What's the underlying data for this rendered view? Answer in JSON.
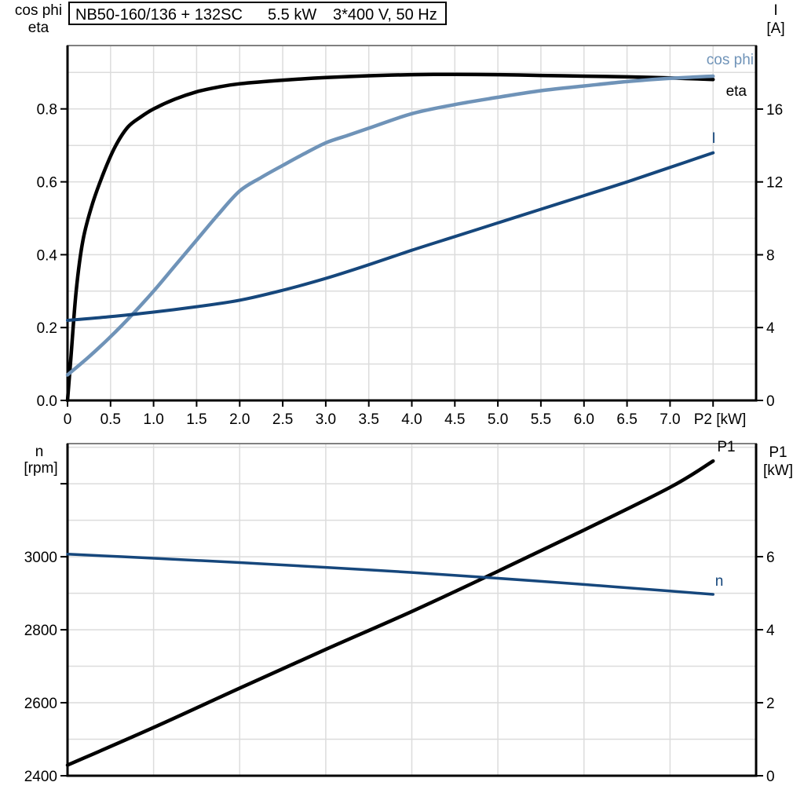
{
  "chart_data": [
    {
      "id": "motor-performance-top",
      "type": "line",
      "title": "NB50-160/136 + 132SC   5.5 kW   3*400 V, 50 Hz",
      "title_parts": [
        "NB50-160/136 + 132SC",
        "5.5 kW",
        "3*400 V, 50 Hz"
      ],
      "xlabel": "P2 [kW]",
      "grid": true,
      "grid_color": "#dcdcdc",
      "frame_color": "#000000",
      "top_border_color": "#808080",
      "x_axis": {
        "range": [
          0,
          8.0
        ],
        "tick_values": [
          0,
          0.5,
          1.0,
          1.5,
          2.0,
          2.5,
          3.0,
          3.5,
          4.0,
          4.5,
          5.0,
          5.5,
          6.0,
          6.5,
          7.0,
          7.5
        ],
        "tick_labels": [
          "0",
          "0.5",
          "1.0",
          "1.5",
          "2.0",
          "2.5",
          "3.0",
          "3.5",
          "4.0",
          "4.5",
          "5.0",
          "5.5",
          "6.0",
          "6.5",
          "7.0",
          ""
        ],
        "gridlines": [
          0.5,
          1.0,
          1.5,
          2.0,
          2.5,
          3.0,
          3.5,
          4.0,
          4.5,
          5.0,
          5.5,
          6.0,
          6.5,
          7.0,
          7.5
        ]
      },
      "y_left": {
        "label": [
          "cos phi",
          "eta"
        ],
        "range": [
          0,
          0.974
        ],
        "tick_values": [
          0.0,
          0.2,
          0.4,
          0.6,
          0.8
        ],
        "tick_labels": [
          "0.0",
          "0.2",
          "0.4",
          "0.6",
          "0.8"
        ],
        "gridlines": [
          0.1,
          0.2,
          0.3,
          0.4,
          0.5,
          0.6,
          0.7,
          0.8,
          0.9
        ]
      },
      "y_right": {
        "label": [
          "I",
          "[A]"
        ],
        "range": [
          0,
          19.49
        ],
        "tick_values": [
          0,
          4,
          8,
          12,
          16
        ],
        "tick_labels": [
          "0",
          "4",
          "8",
          "12",
          "16"
        ],
        "gridlines": []
      },
      "series": [
        {
          "name": "eta",
          "label": "eta",
          "axis": "left",
          "color": "#000000",
          "x": [
            0,
            0.04,
            0.1,
            0.18,
            0.29,
            0.42,
            0.55,
            0.7,
            0.85,
            1.0,
            1.25,
            1.5,
            1.75,
            2.0,
            2.5,
            3.0,
            3.5,
            4.0,
            4.5,
            5.0,
            5.5,
            6.0,
            6.5,
            7.0,
            7.5
          ],
          "y": [
            0.0,
            0.12,
            0.3,
            0.44,
            0.54,
            0.625,
            0.695,
            0.75,
            0.778,
            0.8,
            0.827,
            0.847,
            0.86,
            0.869,
            0.879,
            0.886,
            0.891,
            0.894,
            0.895,
            0.894,
            0.892,
            0.89,
            0.888,
            0.885,
            0.881
          ]
        },
        {
          "name": "cos-phi",
          "label": "cos phi",
          "axis": "left",
          "color": "#6f93b8",
          "x": [
            0,
            0.25,
            0.5,
            0.75,
            1.0,
            1.25,
            1.5,
            1.75,
            2.0,
            2.25,
            2.5,
            2.75,
            3.0,
            3.25,
            3.5,
            4.0,
            4.5,
            5.0,
            5.5,
            6.0,
            6.5,
            7.0,
            7.5
          ],
          "y": [
            0.07,
            0.12,
            0.175,
            0.235,
            0.3,
            0.37,
            0.44,
            0.51,
            0.575,
            0.612,
            0.645,
            0.677,
            0.707,
            0.727,
            0.747,
            0.787,
            0.812,
            0.832,
            0.85,
            0.863,
            0.875,
            0.884,
            0.89
          ]
        },
        {
          "name": "current",
          "label": "I",
          "axis": "right",
          "color": "#16477c",
          "x": [
            0,
            0.5,
            1.0,
            1.5,
            2.0,
            2.5,
            3.0,
            3.5,
            4.0,
            4.5,
            5.0,
            5.5,
            6.0,
            6.5,
            7.0,
            7.5
          ],
          "y": [
            4.4,
            4.6,
            4.85,
            5.15,
            5.5,
            6.05,
            6.7,
            7.45,
            8.25,
            9.0,
            9.75,
            10.5,
            11.25,
            12.0,
            12.8,
            13.6
          ]
        }
      ]
    },
    {
      "id": "motor-performance-bottom",
      "type": "line",
      "title": "",
      "xlabel": "",
      "grid": true,
      "grid_color": "#dcdcdc",
      "frame_color": "#000000",
      "top_border_color": "#808080",
      "x_axis": {
        "range": [
          0,
          8.0
        ],
        "tick_values": [],
        "tick_labels": [],
        "gridlines": [
          1,
          2,
          3,
          4,
          5,
          6,
          7
        ]
      },
      "y_left": {
        "label": [
          "n",
          "[rpm]"
        ],
        "range": [
          2400,
          3310
        ],
        "tick_values": [
          2400,
          2600,
          2800,
          3000,
          3200
        ],
        "tick_labels": [
          "2400",
          "2600",
          "2800",
          "3000",
          ""
        ],
        "gridlines": [
          2500,
          2600,
          2700,
          2800,
          2900,
          3000,
          3100,
          3200,
          3300
        ]
      },
      "y_right": {
        "label": [
          "P1",
          "[kW]"
        ],
        "range": [
          0,
          9.097
        ],
        "tick_values": [
          0,
          2,
          4,
          6
        ],
        "tick_labels": [
          "0",
          "2",
          "4",
          "6"
        ],
        "gridlines": []
      },
      "series": [
        {
          "name": "p1-power",
          "label": "P1",
          "axis": "right",
          "color": "#000000",
          "x": [
            0,
            1,
            2,
            3,
            4,
            5,
            6,
            7,
            7.5
          ],
          "y": [
            0.29,
            1.32,
            2.4,
            3.46,
            4.5,
            5.6,
            6.73,
            7.9,
            8.62
          ]
        },
        {
          "name": "speed",
          "label": "n",
          "axis": "left",
          "color": "#16477c",
          "x": [
            0,
            1,
            2,
            3,
            4,
            5,
            6,
            7,
            7.5
          ],
          "y": [
            3007,
            2996,
            2984,
            2971,
            2957,
            2941,
            2924,
            2906,
            2897
          ]
        }
      ]
    }
  ]
}
